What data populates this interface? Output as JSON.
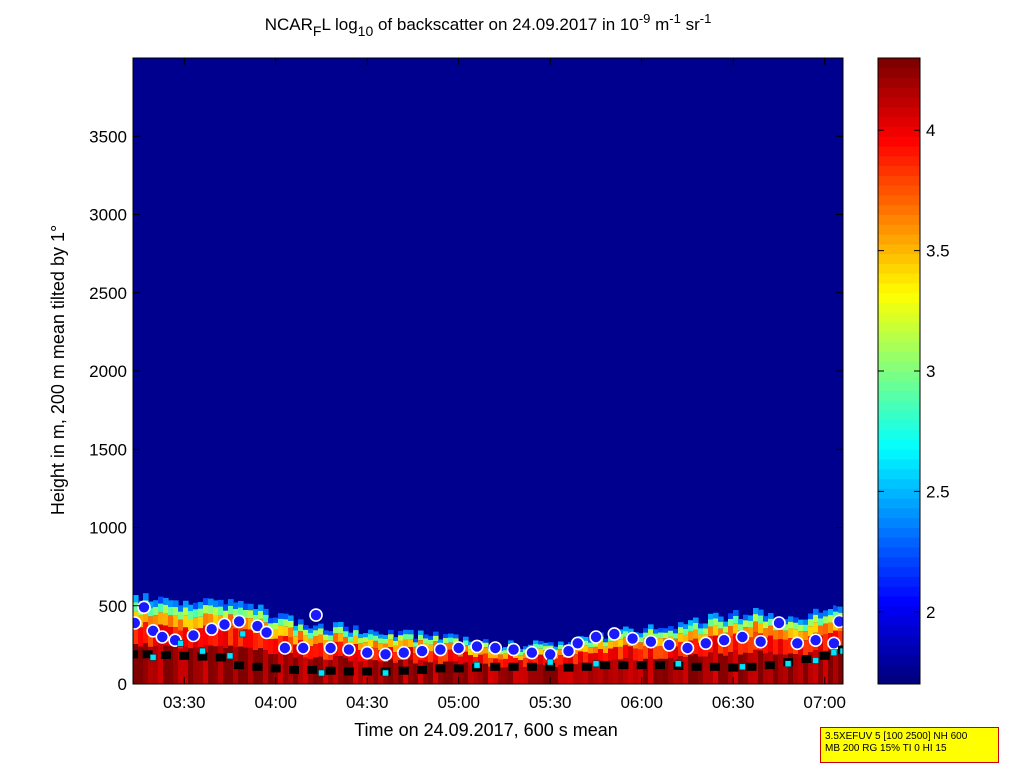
{
  "figure": {
    "title": {
      "prefix": "NCAR",
      "sub1": "F",
      "mid": "L log",
      "sub2": "10",
      "main": " of backscatter on 24.09.2017 in 10",
      "sup1": "-9",
      "unit1": " m",
      "sup2": "-1",
      "unit2": " sr",
      "sup3": "-1"
    },
    "xlabel": "Time on 24.09.2017, 600 s mean",
    "ylabel": "Height in m, 200 m mean tilted by 1°",
    "info_box": {
      "line1": "3.5XEFUV 5 [100 2500] NH 600",
      "line2": "MB 200 RG 15% TI 0 HI 15"
    }
  },
  "chart_data": {
    "type": "heatmap",
    "title": "NCAR_F L log10 of backscatter on 24.09.2017 in 10^-9 m^-1 sr^-1",
    "xlabel": "Time on 24.09.2017, 600 s mean",
    "ylabel": "Height in m, 200 m mean tilted by 1°",
    "x_ticks": [
      "03:30",
      "04:00",
      "04:30",
      "05:00",
      "05:30",
      "06:00",
      "06:30",
      "07:00"
    ],
    "x_tick_hours": [
      3.5,
      4.0,
      4.5,
      5.0,
      5.5,
      6.0,
      6.5,
      7.0
    ],
    "xlim_hours": [
      3.22,
      7.1
    ],
    "y_ticks": [
      "0",
      "500",
      "1000",
      "1500",
      "2000",
      "2500",
      "3000",
      "3500"
    ],
    "y_tick_values": [
      0,
      500,
      1000,
      1500,
      2000,
      2500,
      3000,
      3500
    ],
    "ylim": [
      0,
      4000
    ],
    "colorbar": {
      "ticks": [
        "2",
        "2.5",
        "3",
        "3.5",
        "4"
      ],
      "tick_values": [
        2,
        2.5,
        3,
        3.5,
        4
      ],
      "range": [
        1.7,
        4.3
      ],
      "colormap": "jet"
    },
    "background_value": 1.75,
    "aerosol_layer_top": {
      "time_hours": [
        3.22,
        3.4,
        3.6,
        3.8,
        4.0,
        4.2,
        4.4,
        4.6,
        4.8,
        5.0,
        5.2,
        5.4,
        5.6,
        5.8,
        6.0,
        6.2,
        6.4,
        6.6,
        6.8,
        7.0,
        7.1
      ],
      "height_m": [
        560,
        530,
        510,
        560,
        430,
        380,
        360,
        340,
        310,
        290,
        260,
        250,
        270,
        320,
        350,
        390,
        420,
        460,
        410,
        480,
        530
      ]
    },
    "markers": [
      {
        "name": "mixing-layer (white-ringed blue circles)",
        "time_hours": [
          3.23,
          3.28,
          3.33,
          3.38,
          3.45,
          3.55,
          3.65,
          3.72,
          3.8,
          3.9,
          3.95,
          4.05,
          4.15,
          4.22,
          4.3,
          4.4,
          4.5,
          4.6,
          4.7,
          4.8,
          4.9,
          5.0,
          5.1,
          5.2,
          5.3,
          5.4,
          5.5,
          5.6,
          5.65,
          5.75,
          5.85,
          5.95,
          6.05,
          6.15,
          6.25,
          6.35,
          6.45,
          6.55,
          6.65,
          6.75,
          6.85,
          6.95,
          7.05,
          7.08
        ],
        "height_m": [
          390,
          490,
          340,
          300,
          280,
          310,
          350,
          380,
          400,
          370,
          330,
          230,
          230,
          440,
          230,
          220,
          200,
          190,
          200,
          210,
          220,
          230,
          240,
          230,
          220,
          200,
          190,
          210,
          260,
          300,
          320,
          290,
          270,
          250,
          230,
          260,
          280,
          300,
          270,
          390,
          260,
          280,
          260,
          400
        ]
      },
      {
        "name": "lower layer (black squares)",
        "time_hours": [
          3.22,
          3.3,
          3.4,
          3.5,
          3.6,
          3.7,
          3.8,
          3.9,
          4.0,
          4.1,
          4.2,
          4.3,
          4.4,
          4.5,
          4.6,
          4.7,
          4.8,
          4.9,
          5.0,
          5.1,
          5.2,
          5.3,
          5.4,
          5.5,
          5.6,
          5.7,
          5.8,
          5.9,
          6.0,
          6.1,
          6.2,
          6.3,
          6.4,
          6.5,
          6.6,
          6.7,
          6.8,
          6.9,
          7.0,
          7.1
        ],
        "height_m": [
          190,
          190,
          185,
          180,
          175,
          170,
          120,
          110,
          100,
          90,
          90,
          85,
          80,
          80,
          80,
          85,
          90,
          100,
          100,
          105,
          110,
          110,
          110,
          110,
          105,
          110,
          120,
          120,
          120,
          120,
          115,
          110,
          110,
          105,
          110,
          120,
          140,
          160,
          180,
          220
        ]
      },
      {
        "name": "cyan squares",
        "time_hours": [
          3.33,
          3.48,
          3.6,
          3.75,
          3.82,
          4.25,
          4.6,
          5.1,
          5.5,
          5.75,
          6.2,
          6.55,
          6.8,
          6.95,
          7.05,
          7.1
        ],
        "height_m": [
          170,
          260,
          210,
          180,
          320,
          70,
          70,
          120,
          140,
          130,
          130,
          110,
          130,
          150,
          200,
          210
        ]
      }
    ],
    "grid": false,
    "legend": "none"
  }
}
